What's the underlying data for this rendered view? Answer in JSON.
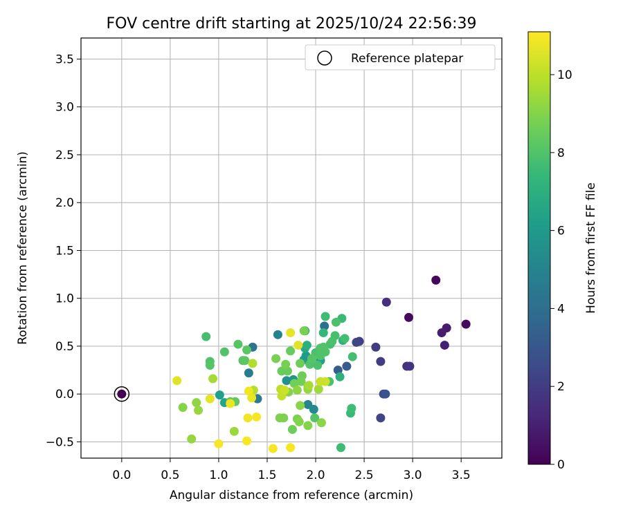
{
  "chart_data": {
    "type": "scatter",
    "title": "FOV centre drift starting at 2025/10/24 22:56:39",
    "xlabel": "Angular distance from reference (arcmin)",
    "ylabel": "Rotation from reference (arcmin)",
    "xlim": [
      -0.42,
      3.92
    ],
    "ylim": [
      -0.67,
      3.72
    ],
    "xticks": [
      0.0,
      0.5,
      1.0,
      1.5,
      2.0,
      2.5,
      3.0,
      3.5
    ],
    "yticks": [
      -0.5,
      0.0,
      0.5,
      1.0,
      1.5,
      2.0,
      2.5,
      3.0,
      3.5
    ],
    "xtick_labels": [
      "0.0",
      "0.5",
      "1.0",
      "1.5",
      "2.0",
      "2.5",
      "3.0",
      "3.5"
    ],
    "ytick_labels": [
      "−0.5",
      "0.0",
      "0.5",
      "1.0",
      "1.5",
      "2.0",
      "2.5",
      "3.0",
      "3.5"
    ],
    "grid": true,
    "legend": {
      "position": "top-right",
      "entries": [
        "Reference platepar"
      ]
    },
    "reference_point": {
      "x": 0.0,
      "y": 0.0,
      "c": 0
    },
    "colorbar": {
      "label": "Hours from first FF file",
      "min": 0,
      "max": 11.1,
      "ticks": [
        0,
        2,
        4,
        6,
        8,
        10
      ],
      "tick_labels": [
        "0",
        "2",
        "4",
        "6",
        "8",
        "10"
      ],
      "colormap": "viridis",
      "colors": [
        "#440154",
        "#482878",
        "#3e4989",
        "#31688e",
        "#26828e",
        "#1f9e89",
        "#35b779",
        "#6ece58",
        "#b5de2b",
        "#fde725"
      ]
    },
    "series": [
      {
        "points": [
          {
            "x": 3.24,
            "y": 1.19,
            "c": 0.2
          },
          {
            "x": 3.55,
            "y": 0.73,
            "c": 0.3
          },
          {
            "x": 2.96,
            "y": 0.8,
            "c": 0.3
          },
          {
            "x": 3.35,
            "y": 0.69,
            "c": 0.8
          },
          {
            "x": 3.3,
            "y": 0.64,
            "c": 0.9
          },
          {
            "x": 3.33,
            "y": 0.51,
            "c": 1.0
          },
          {
            "x": 2.73,
            "y": 0.96,
            "c": 1.5
          },
          {
            "x": 2.94,
            "y": 0.29,
            "c": 1.6
          },
          {
            "x": 2.97,
            "y": 0.29,
            "c": 1.7
          },
          {
            "x": 2.62,
            "y": 0.49,
            "c": 2.0
          },
          {
            "x": 2.67,
            "y": 0.34,
            "c": 2.0
          },
          {
            "x": 2.45,
            "y": 0.55,
            "c": 2.1
          },
          {
            "x": 2.42,
            "y": 0.54,
            "c": 2.3
          },
          {
            "x": 2.67,
            "y": -0.25,
            "c": 2.3
          },
          {
            "x": 2.7,
            "y": 0.0,
            "c": 2.5
          },
          {
            "x": 2.72,
            "y": 0.0,
            "c": 2.9
          },
          {
            "x": 2.32,
            "y": 0.29,
            "c": 3.2
          },
          {
            "x": 2.23,
            "y": 0.25,
            "c": 3.3
          },
          {
            "x": 2.09,
            "y": 0.71,
            "c": 4.1
          },
          {
            "x": 1.35,
            "y": 0.49,
            "c": 4.3
          },
          {
            "x": 1.31,
            "y": 0.22,
            "c": 4.6
          },
          {
            "x": 1.4,
            "y": -0.05,
            "c": 4.6
          },
          {
            "x": 1.61,
            "y": 0.62,
            "c": 4.9
          },
          {
            "x": 1.92,
            "y": -0.11,
            "c": 5.1
          },
          {
            "x": 1.98,
            "y": -0.16,
            "c": 5.3
          },
          {
            "x": 1.7,
            "y": 0.14,
            "c": 5.6
          },
          {
            "x": 1.77,
            "y": 0.15,
            "c": 5.8
          },
          {
            "x": 1.9,
            "y": 0.4,
            "c": 6.0
          },
          {
            "x": 2.05,
            "y": 0.35,
            "c": 6.3
          },
          {
            "x": 1.88,
            "y": 0.36,
            "c": 6.1
          },
          {
            "x": 1.01,
            "y": -0.01,
            "c": 6.2
          },
          {
            "x": 1.06,
            "y": -0.09,
            "c": 6.5
          },
          {
            "x": 1.89,
            "y": 0.66,
            "c": 6.9
          },
          {
            "x": 2.25,
            "y": 0.18,
            "c": 7.0
          },
          {
            "x": 2.28,
            "y": 0.56,
            "c": 7.1
          },
          {
            "x": 1.89,
            "y": 0.48,
            "c": 6.6
          },
          {
            "x": 1.91,
            "y": 0.51,
            "c": 7.0
          },
          {
            "x": 2.08,
            "y": 0.64,
            "c": 7.4
          },
          {
            "x": 2.0,
            "y": 0.43,
            "c": 7.3
          },
          {
            "x": 2.27,
            "y": 0.79,
            "c": 7.5
          },
          {
            "x": 2.26,
            "y": -0.56,
            "c": 7.6
          },
          {
            "x": 2.1,
            "y": 0.81,
            "c": 7.6
          },
          {
            "x": 2.36,
            "y": -0.2,
            "c": 7.5
          },
          {
            "x": 2.37,
            "y": -0.15,
            "c": 7.6
          },
          {
            "x": 2.38,
            "y": 0.39,
            "c": 7.7
          },
          {
            "x": 2.3,
            "y": 0.58,
            "c": 7.7
          },
          {
            "x": 2.2,
            "y": 0.61,
            "c": 7.8
          },
          {
            "x": 2.21,
            "y": 0.75,
            "c": 7.9
          },
          {
            "x": 2.15,
            "y": 0.52,
            "c": 7.8
          },
          {
            "x": 2.17,
            "y": 0.55,
            "c": 7.9
          },
          {
            "x": 2.14,
            "y": 0.13,
            "c": 7.9
          },
          {
            "x": 2.02,
            "y": 0.3,
            "c": 7.9
          },
          {
            "x": 2.0,
            "y": 0.42,
            "c": 7.9
          },
          {
            "x": 2.05,
            "y": 0.48,
            "c": 8.0
          },
          {
            "x": 2.08,
            "y": 0.49,
            "c": 8.0
          },
          {
            "x": 1.94,
            "y": 0.31,
            "c": 8.0
          },
          {
            "x": 1.96,
            "y": 0.37,
            "c": 8.1
          },
          {
            "x": 1.99,
            "y": -0.25,
            "c": 8.1
          },
          {
            "x": 2.1,
            "y": 0.44,
            "c": 8.0
          },
          {
            "x": 2.05,
            "y": 0.4,
            "c": 8.0
          },
          {
            "x": 0.87,
            "y": 0.6,
            "c": 7.8
          },
          {
            "x": 0.91,
            "y": 0.34,
            "c": 8.0
          },
          {
            "x": 0.91,
            "y": 0.3,
            "c": 8.1
          },
          {
            "x": 1.06,
            "y": 0.44,
            "c": 8.0
          },
          {
            "x": 1.2,
            "y": 0.52,
            "c": 8.1
          },
          {
            "x": 1.25,
            "y": 0.35,
            "c": 8.1
          },
          {
            "x": 1.29,
            "y": 0.46,
            "c": 8.2
          },
          {
            "x": 1.27,
            "y": 0.35,
            "c": 8.2
          },
          {
            "x": 1.17,
            "y": -0.08,
            "c": 8.3
          },
          {
            "x": 1.12,
            "y": -0.08,
            "c": 8.3
          },
          {
            "x": 1.65,
            "y": 0.24,
            "c": 8.5
          },
          {
            "x": 1.71,
            "y": 0.24,
            "c": 8.5
          },
          {
            "x": 1.86,
            "y": 0.19,
            "c": 8.6
          },
          {
            "x": 1.84,
            "y": 0.32,
            "c": 8.6
          },
          {
            "x": 1.85,
            "y": 0.13,
            "c": 8.7
          },
          {
            "x": 1.78,
            "y": 0.11,
            "c": 8.7
          },
          {
            "x": 1.74,
            "y": 0.45,
            "c": 8.5
          },
          {
            "x": 1.69,
            "y": 0.31,
            "c": 8.8
          },
          {
            "x": 1.88,
            "y": 0.66,
            "c": 8.8
          },
          {
            "x": 1.59,
            "y": 0.37,
            "c": 8.8
          },
          {
            "x": 1.63,
            "y": -0.25,
            "c": 8.9
          },
          {
            "x": 1.67,
            "y": -0.25,
            "c": 8.9
          },
          {
            "x": 1.76,
            "y": -0.37,
            "c": 8.6
          },
          {
            "x": 1.81,
            "y": -0.26,
            "c": 8.9
          },
          {
            "x": 1.83,
            "y": -0.29,
            "c": 9.0
          },
          {
            "x": 1.92,
            "y": -0.33,
            "c": 9.0
          },
          {
            "x": 2.06,
            "y": -0.3,
            "c": 9.1
          },
          {
            "x": 1.72,
            "y": 0.02,
            "c": 9.0
          },
          {
            "x": 1.81,
            "y": 0.04,
            "c": 9.2
          },
          {
            "x": 1.84,
            "y": -0.12,
            "c": 9.1
          },
          {
            "x": 1.92,
            "y": 0.08,
            "c": 9.4
          },
          {
            "x": 1.92,
            "y": 0.05,
            "c": 9.3
          },
          {
            "x": 1.93,
            "y": 0.09,
            "c": 9.6
          },
          {
            "x": 2.03,
            "y": 0.05,
            "c": 9.5
          },
          {
            "x": 0.63,
            "y": -0.14,
            "c": 9.0
          },
          {
            "x": 0.72,
            "y": -0.47,
            "c": 9.3
          },
          {
            "x": 0.77,
            "y": -0.09,
            "c": 9.2
          },
          {
            "x": 0.79,
            "y": -0.17,
            "c": 9.3
          },
          {
            "x": 0.94,
            "y": 0.16,
            "c": 9.6
          },
          {
            "x": 1.16,
            "y": -0.39,
            "c": 9.4
          },
          {
            "x": 1.35,
            "y": 0.32,
            "c": 9.8
          },
          {
            "x": 1.36,
            "y": 0.04,
            "c": 9.9
          },
          {
            "x": 1.64,
            "y": 0.05,
            "c": 10.0
          },
          {
            "x": 1.65,
            "y": -0.02,
            "c": 10.1
          },
          {
            "x": 1.68,
            "y": 0.04,
            "c": 10.3
          },
          {
            "x": 2.05,
            "y": 0.13,
            "c": 10.2
          },
          {
            "x": 2.1,
            "y": 0.13,
            "c": 10.3
          },
          {
            "x": 1.82,
            "y": 0.51,
            "c": 10.6
          },
          {
            "x": 1.74,
            "y": 0.64,
            "c": 10.7
          },
          {
            "x": 0.57,
            "y": 0.14,
            "c": 10.6
          },
          {
            "x": 0.91,
            "y": -0.05,
            "c": 10.7
          },
          {
            "x": 1.12,
            "y": -0.1,
            "c": 10.8
          },
          {
            "x": 1.31,
            "y": 0.03,
            "c": 10.9
          },
          {
            "x": 1.34,
            "y": -0.04,
            "c": 10.8
          },
          {
            "x": 1.3,
            "y": -0.25,
            "c": 10.9
          },
          {
            "x": 1.39,
            "y": -0.24,
            "c": 11.0
          },
          {
            "x": 1.29,
            "y": -0.49,
            "c": 11.0
          },
          {
            "x": 1.0,
            "y": -0.52,
            "c": 11.0
          },
          {
            "x": 1.56,
            "y": -0.57,
            "c": 11.0
          },
          {
            "x": 1.74,
            "y": -0.56,
            "c": 11.0
          }
        ]
      }
    ]
  }
}
